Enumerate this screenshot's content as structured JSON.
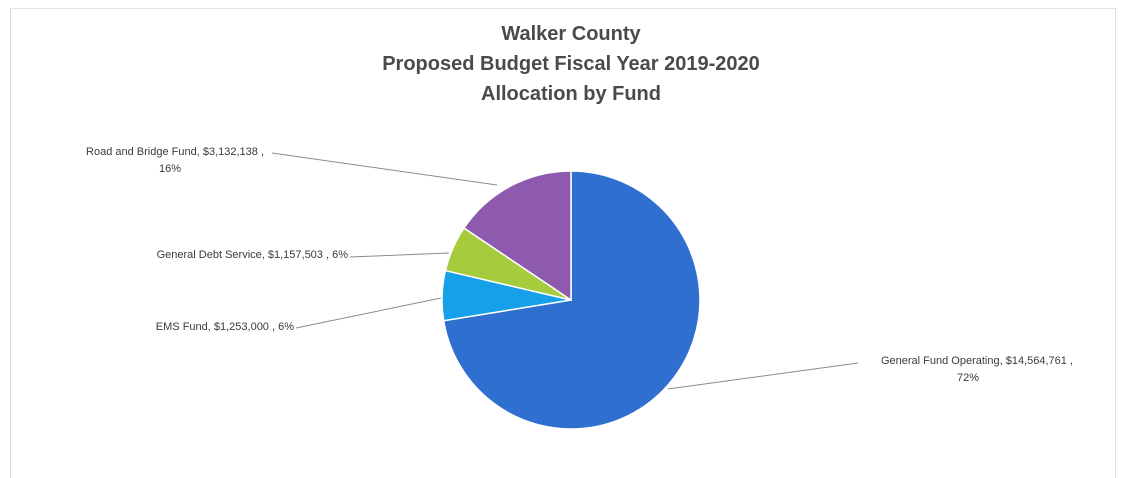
{
  "chart_data": {
    "type": "pie",
    "title_lines": [
      "Walker County",
      "Proposed Budget Fiscal Year 2019-2020",
      "Allocation by Fund"
    ],
    "slices": [
      {
        "name": "General Fund Operating",
        "value": 14564761,
        "value_label": "$14,564,761",
        "percent_label": "72%",
        "color": "#2e6fcf"
      },
      {
        "name": "EMS Fund",
        "value": 1253000,
        "value_label": "$1,253,000",
        "percent_label": "6%",
        "color": "#16a0ea"
      },
      {
        "name": "General Debt Service",
        "value": 1157503,
        "value_label": "$1,157,503",
        "percent_label": "6%",
        "color": "#a6cc3e"
      },
      {
        "name": "Road and Bridge Fund",
        "value": 3132138,
        "value_label": "$3,132,138",
        "percent_label": "16%",
        "color": "#8e5aae"
      }
    ],
    "legend": "none"
  }
}
